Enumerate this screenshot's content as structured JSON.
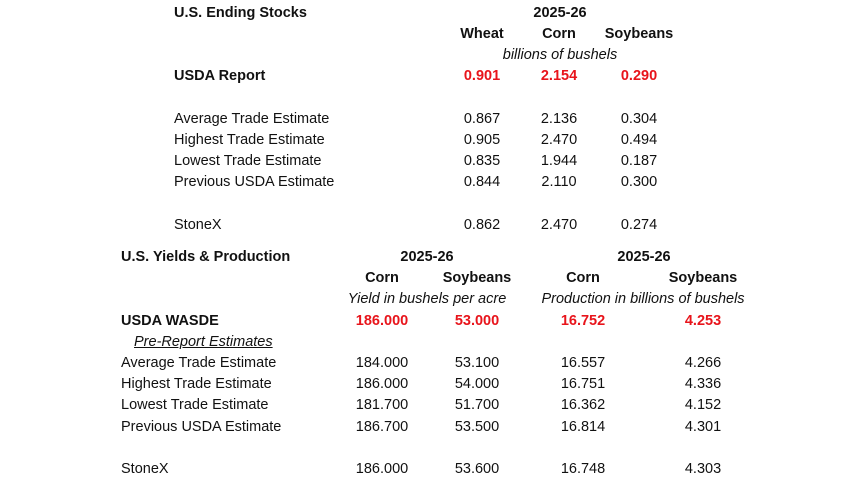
{
  "colors": {
    "highlight": "#e8141b",
    "text": "#111111",
    "background": "#ffffff"
  },
  "ending_stocks": {
    "title": "U.S. Ending Stocks",
    "year": "2025-26",
    "columns": [
      "Wheat",
      "Corn",
      "Soybeans"
    ],
    "units": "billions of bushels",
    "usda": {
      "label": "USDA Report",
      "values": [
        "0.901",
        "2.154",
        "0.290"
      ]
    },
    "rows": [
      {
        "label": "Average Trade Estimate",
        "values": [
          "0.867",
          "2.136",
          "0.304"
        ]
      },
      {
        "label": "Highest Trade Estimate",
        "values": [
          "0.905",
          "2.470",
          "0.494"
        ]
      },
      {
        "label": "Lowest Trade Estimate",
        "values": [
          "0.835",
          "1.944",
          "0.187"
        ]
      },
      {
        "label": "Previous USDA Estimate",
        "values": [
          "0.844",
          "2.110",
          "0.300"
        ]
      }
    ],
    "stonex": {
      "label": "StoneX",
      "values": [
        "0.862",
        "2.470",
        "0.274"
      ]
    }
  },
  "yields_production": {
    "title": "U.S. Yields & Production",
    "groups": [
      {
        "year": "2025-26",
        "columns": [
          "Corn",
          "Soybeans"
        ],
        "units": "Yield in bushels per acre"
      },
      {
        "year": "2025-26",
        "columns": [
          "Corn",
          "Soybeans"
        ],
        "units": "Production in billions of bushels"
      }
    ],
    "usda": {
      "label": "USDA WASDE",
      "values": [
        "186.000",
        "53.000",
        "16.752",
        "4.253"
      ]
    },
    "subheading": "Pre-Report Estimates",
    "rows": [
      {
        "label": "Average Trade Estimate",
        "values": [
          "184.000",
          "53.100",
          "16.557",
          "4.266"
        ]
      },
      {
        "label": "Highest Trade Estimate",
        "values": [
          "186.000",
          "54.000",
          "16.751",
          "4.336"
        ]
      },
      {
        "label": "Lowest Trade Estimate",
        "values": [
          "181.700",
          "51.700",
          "16.362",
          "4.152"
        ]
      },
      {
        "label": "Previous USDA Estimate",
        "values": [
          "186.700",
          "53.500",
          "16.814",
          "4.301"
        ]
      }
    ],
    "stonex": {
      "label": "StoneX",
      "values": [
        "186.000",
        "53.600",
        "16.748",
        "4.303"
      ]
    }
  }
}
